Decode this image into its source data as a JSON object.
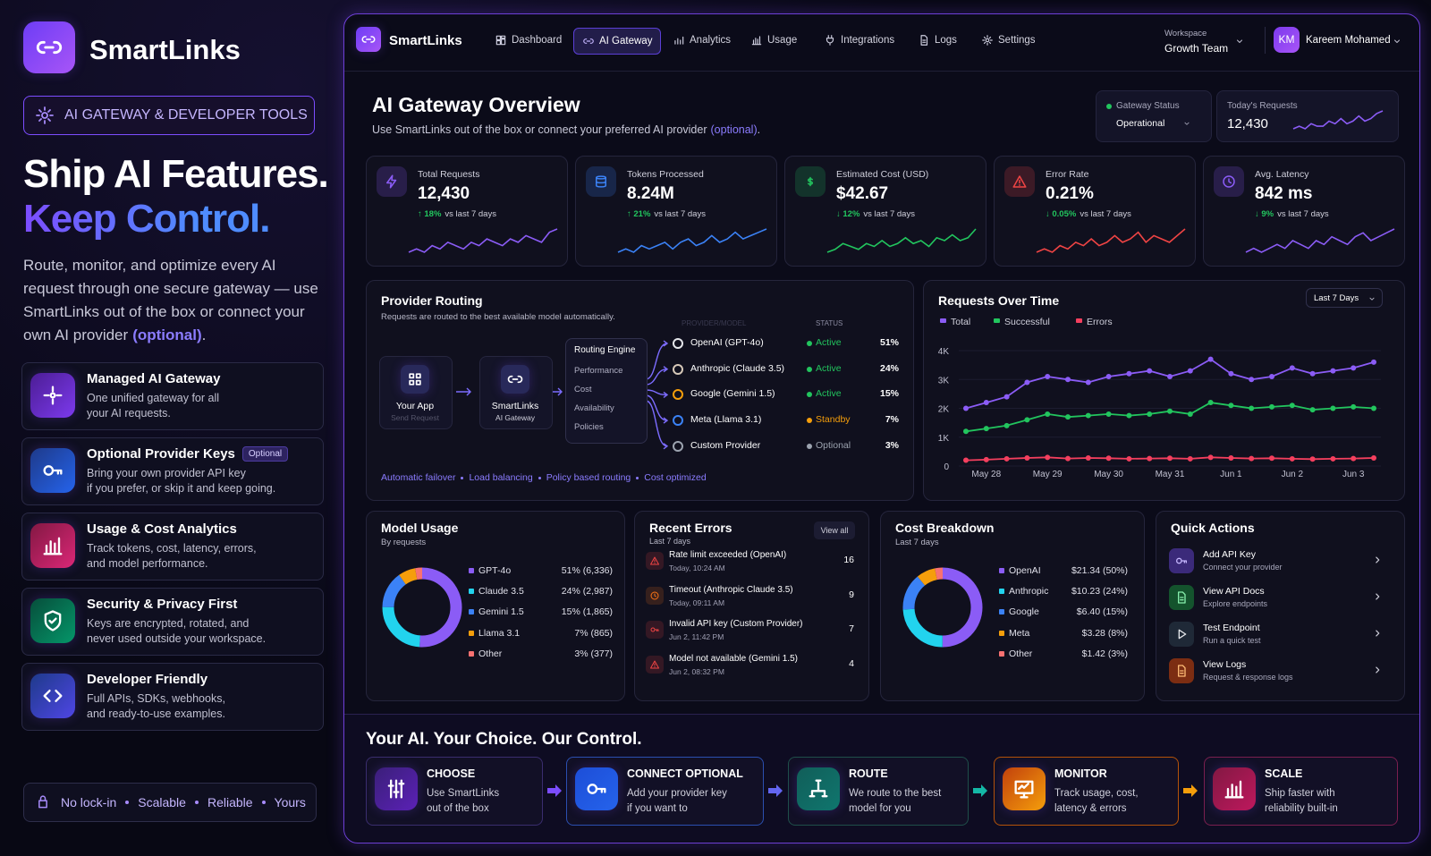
{
  "sidebar": {
    "brand": "SmartLinks",
    "badge": "AI GATEWAY & DEVELOPER TOOLS",
    "headline": [
      "Ship AI Features.",
      "Keep Control."
    ],
    "description": "Route, monitor, and optimize every AI request through one secure gateway — use SmartLinks out of the box or connect your own AI provider",
    "description_link": "(optional)",
    "description_end": ".",
    "features": [
      {
        "title": "Managed AI Gateway",
        "lines": [
          "One unified gateway for all",
          "your AI requests."
        ]
      },
      {
        "title": "Optional Provider Keys",
        "tag": "Optional",
        "lines": [
          "Bring your own provider API key",
          "if you prefer, or skip it and keep going."
        ]
      },
      {
        "title": "Usage & Cost Analytics",
        "lines": [
          "Track tokens, cost, latency, errors,",
          "and model performance."
        ]
      },
      {
        "title": "Security & Privacy First",
        "lines": [
          "Keys are encrypted, rotated, and",
          "never used outside your workspace."
        ]
      },
      {
        "title": "Developer Friendly",
        "lines": [
          "Full APIs, SDKs, webhooks,",
          "and ready-to-use examples."
        ]
      }
    ],
    "footer": [
      "No lock-in",
      "Scalable",
      "Reliable",
      "Yours"
    ]
  },
  "nav": {
    "brand": "SmartLinks",
    "items": [
      "Dashboard",
      "AI Gateway",
      "Analytics",
      "Usage",
      "Integrations",
      "Logs",
      "Settings"
    ],
    "active": "AI Gateway",
    "workspace_label": "Workspace",
    "workspace": "Growth Team",
    "user_initials": "KM",
    "user": "Kareem Mohamed"
  },
  "overview": {
    "title": "AI Gateway Overview",
    "subtitle": "Use SmartLinks out of the box or connect your preferred AI provider",
    "subtitle_link": "(optional)",
    "subtitle_end": ".",
    "status_label": "Gateway Status",
    "status": "Operational",
    "today_label": "Today's Requests",
    "today_value": "12,430",
    "today_spark": [
      3,
      4,
      3,
      5,
      4,
      4,
      6,
      5,
      7,
      5,
      6,
      8,
      6,
      7,
      9,
      10
    ],
    "today_color": "#8b5cf6"
  },
  "kpis": [
    {
      "label": "Total Requests",
      "value": "12,430",
      "change": "↑ 18%",
      "note": "vs last 7 days",
      "color": "#8b5cf6",
      "spark": [
        3,
        4,
        3,
        5,
        4,
        6,
        5,
        4,
        6,
        5,
        7,
        6,
        5,
        7,
        6,
        8,
        7,
        6,
        9,
        10
      ]
    },
    {
      "label": "Tokens Processed",
      "value": "8.24M",
      "change": "↑ 21%",
      "note": "vs last 7 days",
      "color": "#3b82f6",
      "spark": [
        3,
        4,
        3,
        5,
        4,
        5,
        6,
        4,
        6,
        7,
        5,
        6,
        8,
        6,
        7,
        9,
        7,
        8,
        9,
        10
      ]
    },
    {
      "label": "Estimated Cost (USD)",
      "value": "$42.67",
      "change": "↓ 12%",
      "note": "vs last 7 days",
      "color": "#22c55e",
      "spark": [
        2,
        3,
        5,
        4,
        3,
        5,
        4,
        6,
        4,
        5,
        7,
        5,
        6,
        4,
        7,
        6,
        8,
        6,
        7,
        10
      ]
    },
    {
      "label": "Error Rate",
      "value": "0.21%",
      "change": "↓ 0.05%",
      "note": "vs last 7 days",
      "color": "#ef4444",
      "spark": [
        3,
        4,
        3,
        5,
        4,
        6,
        5,
        7,
        5,
        6,
        8,
        6,
        7,
        9,
        6,
        8,
        7,
        6,
        8,
        10
      ]
    },
    {
      "label": "Avg. Latency",
      "value": "842 ms",
      "change": "↓ 9%",
      "note": "vs last 7 days",
      "color": "#8b5cf6",
      "spark": [
        3,
        4,
        3,
        4,
        5,
        4,
        6,
        5,
        4,
        6,
        5,
        7,
        6,
        5,
        7,
        8,
        6,
        7,
        8,
        9
      ]
    }
  ],
  "routing": {
    "title": "Provider Routing",
    "subtitle": "Requests are routed to the best available model automatically.",
    "nodes": [
      {
        "label": "Your App",
        "sub": "Send Request"
      },
      {
        "label": "SmartLinks",
        "sub": "AI Gateway"
      }
    ],
    "engine": {
      "title": "Routing Engine",
      "items": [
        "Performance",
        "Cost",
        "Availability",
        "Policies"
      ]
    },
    "columns": [
      "PROVIDER/MODEL",
      "STATUS"
    ],
    "providers": [
      {
        "name": "OpenAI (GPT-4o)",
        "status": "Active",
        "status_color": "#22c55e",
        "share": "51%"
      },
      {
        "name": "Anthropic (Claude 3.5)",
        "status": "Active",
        "status_color": "#22c55e",
        "share": "24%"
      },
      {
        "name": "Google (Gemini 1.5)",
        "status": "Active",
        "status_color": "#22c55e",
        "share": "15%"
      },
      {
        "name": "Meta (Llama 3.1)",
        "status": "Standby",
        "status_color": "#f59e0b",
        "share": "7%"
      },
      {
        "name": "Custom Provider",
        "status": "Optional",
        "status_color": "#9ca3af",
        "share": "3%"
      }
    ],
    "features": [
      "Automatic failover",
      "Load balancing",
      "Policy based routing",
      "Cost optimized"
    ]
  },
  "chart_data": [
    {
      "type": "line",
      "title": "Requests Over Time",
      "range": "Last 7 Days",
      "categories": [
        null,
        "May 28",
        null,
        null,
        "May 29",
        null,
        null,
        "May 30",
        null,
        null,
        "May 31",
        null,
        null,
        "Jun 1",
        null,
        null,
        "Jun 2",
        null,
        null,
        "Jun 3",
        null
      ],
      "series": [
        {
          "name": "Total",
          "color": "#8b5cf6",
          "values": [
            2000,
            2200,
            2400,
            2900,
            3100,
            3000,
            2900,
            3100,
            3200,
            3300,
            3100,
            3300,
            3700,
            3200,
            3000,
            3100,
            3400,
            3200,
            3300,
            3400,
            3600
          ]
        },
        {
          "name": "Successful",
          "color": "#22c55e",
          "values": [
            1200,
            1300,
            1400,
            1600,
            1800,
            1700,
            1750,
            1800,
            1750,
            1800,
            1900,
            1800,
            2200,
            2100,
            2000,
            2050,
            2100,
            1950,
            2000,
            2050,
            2000
          ]
        },
        {
          "name": "Errors",
          "color": "#f43f5e",
          "values": [
            200,
            220,
            250,
            280,
            300,
            260,
            280,
            270,
            250,
            260,
            270,
            250,
            300,
            280,
            260,
            270,
            250,
            240,
            250,
            260,
            280
          ]
        }
      ],
      "ylim": [
        0,
        4000
      ],
      "yticks": [
        0,
        {
          "value": 1000,
          "label": "1K"
        },
        {
          "value": 2000,
          "label": "2K"
        },
        {
          "value": 3000,
          "label": "3K"
        },
        {
          "value": 4000,
          "label": "4K"
        }
      ],
      "grid": true
    },
    {
      "type": "donut",
      "title": "Model Usage",
      "subtitle": "By requests",
      "categories": [
        "GPT-4o",
        "Claude 3.5",
        "Gemini 1.5",
        "Llama 3.1",
        "Other"
      ],
      "values": [
        51,
        24,
        15,
        7,
        3
      ],
      "value_labels": [
        "51% (6,336)",
        "24% (2,987)",
        "15% (1,865)",
        "7% (865)",
        "3% (377)"
      ],
      "colors": [
        "#8b5cf6",
        "#22d3ee",
        "#3b82f6",
        "#f59e0b",
        "#f87171"
      ]
    },
    {
      "type": "donut",
      "title": "Cost Breakdown",
      "subtitle": "Last 7 days",
      "categories": [
        "OpenAI",
        "Anthropic",
        "Google",
        "Meta",
        "Other"
      ],
      "values": [
        21.34,
        10.23,
        6.4,
        3.28,
        1.42
      ],
      "value_labels": [
        "$21.34 (50%)",
        "$10.23 (24%)",
        "$6.40 (15%)",
        "$3.28 (8%)",
        "$1.42 (3%)"
      ],
      "colors": [
        "#8b5cf6",
        "#22d3ee",
        "#3b82f6",
        "#f59e0b",
        "#f87171"
      ]
    }
  ],
  "errors": {
    "title": "Recent Errors",
    "subtitle": "Last 7 days",
    "action": "View all",
    "items": [
      {
        "title": "Rate limit exceeded (OpenAI)",
        "time": "Today, 10:24 AM",
        "count": 16
      },
      {
        "title": "Timeout (Anthropic Claude 3.5)",
        "time": "Today, 09:11 AM",
        "count": 9
      },
      {
        "title": "Invalid API key (Custom Provider)",
        "time": "Jun 2, 11:42 PM",
        "count": 7
      },
      {
        "title": "Model not available (Gemini 1.5)",
        "time": "Jun 2, 08:32 PM",
        "count": 4
      }
    ]
  },
  "quick": {
    "title": "Quick Actions",
    "items": [
      {
        "title": "Add API Key",
        "sub": "Connect your provider"
      },
      {
        "title": "View API Docs",
        "sub": "Explore endpoints"
      },
      {
        "title": "Test Endpoint",
        "sub": "Run a quick test"
      },
      {
        "title": "View Logs",
        "sub": "Request & response logs"
      }
    ]
  },
  "bottom": {
    "title": "Your AI. Your Choice. Our Control.",
    "steps": [
      {
        "title": "CHOOSE",
        "lines": [
          "Use SmartLinks",
          "out of the box"
        ]
      },
      {
        "title": "CONNECT OPTIONAL",
        "lines": [
          "Add your provider key",
          "if you want to"
        ]
      },
      {
        "title": "ROUTE",
        "lines": [
          "We route to the best",
          "model for you"
        ]
      },
      {
        "title": "MONITOR",
        "lines": [
          "Track usage, cost,",
          "latency & errors"
        ]
      },
      {
        "title": "SCALE",
        "lines": [
          "Ship faster with",
          "reliability built-in"
        ]
      }
    ]
  }
}
